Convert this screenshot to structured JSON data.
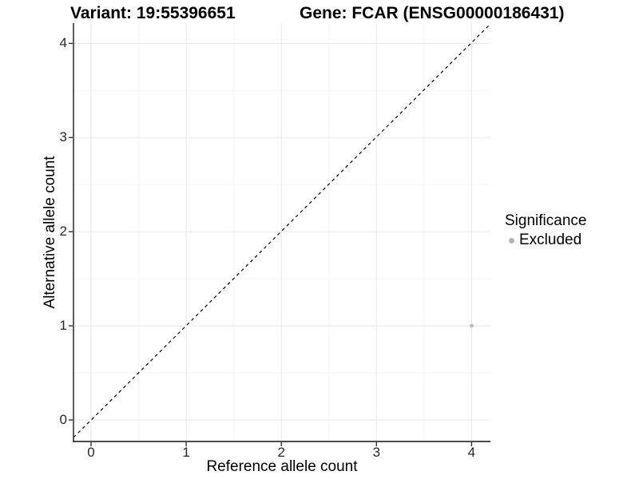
{
  "chart_data": {
    "type": "scatter",
    "titles": {
      "left": "Variant: 19:55396651",
      "right": "Gene: FCAR (ENSG00000186431)"
    },
    "xlabel": "Reference allele count",
    "ylabel": "Alternative allele count",
    "x_ticks": [
      0,
      1,
      2,
      3,
      4
    ],
    "y_ticks": [
      0,
      1,
      2,
      3,
      4
    ],
    "xlim": [
      -0.18,
      4.19
    ],
    "ylim": [
      -0.24,
      4.22
    ],
    "grid": {
      "major": true,
      "minor": true
    },
    "reference_line": {
      "type": "identity y=x",
      "style": "dashed",
      "color": "#000000"
    },
    "points": [
      {
        "x": 4,
        "y": 1,
        "series": "Excluded"
      }
    ],
    "legend": {
      "title": "Significance",
      "position": "right",
      "entries": [
        {
          "label": "Excluded",
          "color": "#b2b2b2",
          "marker": "circle"
        }
      ]
    },
    "colors": {
      "background": "#ffffff",
      "grid_major": "#ebebeb",
      "grid_minor": "#f6f6f6",
      "axis_line": "#333333",
      "tick_mark": "#333333",
      "tick_label": "#262626",
      "point": "#b9b9b9"
    }
  }
}
